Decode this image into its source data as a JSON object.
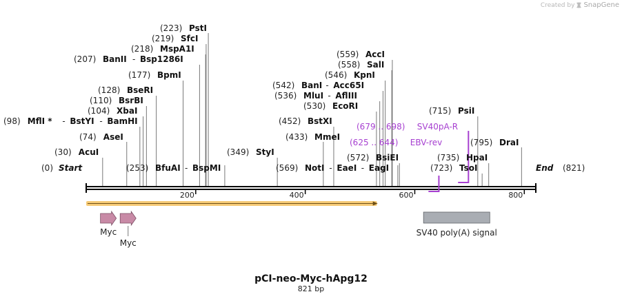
{
  "credit": {
    "prefix": "Created by",
    "brand": "SnapGene"
  },
  "title": "pCI-neo-Myc-hApg12",
  "subtitle": "821 bp",
  "sequence_length": 821,
  "ends": [
    {
      "pos": 0,
      "pos_label": "(0)",
      "label": "Start"
    },
    {
      "pos": 821,
      "pos_label": "(821)",
      "label": "End"
    }
  ],
  "ticks": [
    {
      "pos": 200,
      "label": "200"
    },
    {
      "pos": 400,
      "label": "400"
    },
    {
      "pos": 600,
      "label": "600"
    },
    {
      "pos": 800,
      "label": "800"
    }
  ],
  "enzymes": [
    {
      "pos_label": "(30)",
      "names": [
        "AcuI"
      ],
      "cut": 30
    },
    {
      "pos_label": "(74)",
      "names": [
        "AseI"
      ],
      "cut": 74
    },
    {
      "pos_label": "(98)",
      "names": [
        "MflI *",
        "BstYI",
        "BamHI"
      ],
      "cut": 98
    },
    {
      "pos_label": "(104)",
      "names": [
        "XbaI"
      ],
      "cut": 104
    },
    {
      "pos_label": "(110)",
      "names": [
        "BsrBI"
      ],
      "cut": 110
    },
    {
      "pos_label": "(128)",
      "names": [
        "BseRI"
      ],
      "cut": 128
    },
    {
      "pos_label": "(177)",
      "names": [
        "BpmI"
      ],
      "cut": 177
    },
    {
      "pos_label": "(207)",
      "names": [
        "BanII",
        "Bsp1286I"
      ],
      "cut": 207
    },
    {
      "pos_label": "(218)",
      "names": [
        "MspA1I"
      ],
      "cut": 218
    },
    {
      "pos_label": "(219)",
      "names": [
        "SfcI"
      ],
      "cut": 219
    },
    {
      "pos_label": "(223)",
      "names": [
        "PstI"
      ],
      "cut": 223
    },
    {
      "pos_label": "(253)",
      "names": [
        "BfuAI",
        "BspMI"
      ],
      "cut": 253
    },
    {
      "pos_label": "(349)",
      "names": [
        "StyI"
      ],
      "cut": 349
    },
    {
      "pos_label": "(433)",
      "names": [
        "MmeI"
      ],
      "cut": 433
    },
    {
      "pos_label": "(452)",
      "names": [
        "BstXI"
      ],
      "cut": 452
    },
    {
      "pos_label": "(530)",
      "names": [
        "EcoRI"
      ],
      "cut": 530
    },
    {
      "pos_label": "(536)",
      "names": [
        "MluI",
        "AflIII"
      ],
      "cut": 536
    },
    {
      "pos_label": "(542)",
      "names": [
        "BanI",
        "Acc65I"
      ],
      "cut": 542
    },
    {
      "pos_label": "(546)",
      "names": [
        "KpnI"
      ],
      "cut": 546
    },
    {
      "pos_label": "(558)",
      "names": [
        "SalI"
      ],
      "cut": 558
    },
    {
      "pos_label": "(559)",
      "names": [
        "AccI"
      ],
      "cut": 559
    },
    {
      "pos_label": "(569)",
      "names": [
        "NotI",
        "EaeI",
        "EagI"
      ],
      "cut": 569
    },
    {
      "pos_label": "(572)",
      "names": [
        "BsiEI"
      ],
      "cut": 572
    },
    {
      "pos_label": "(715)",
      "names": [
        "PsiI"
      ],
      "cut": 715
    },
    {
      "pos_label": "(723)",
      "names": [
        "TsoI"
      ],
      "cut": 723
    },
    {
      "pos_label": "(735)",
      "names": [
        "HpaI"
      ],
      "cut": 735
    },
    {
      "pos_label": "(795)",
      "names": [
        "DraI"
      ],
      "cut": 795
    }
  ],
  "primers": [
    {
      "range": "(625 .. 644)",
      "name": "EBV-rev",
      "start": 625,
      "end": 644,
      "direction": "reverse"
    },
    {
      "range": "(679 .. 698)",
      "name": "SV40pA-R",
      "start": 679,
      "end": 698,
      "direction": "reverse"
    }
  ],
  "features": [
    {
      "name": "Myc",
      "start": 26,
      "end": 55,
      "kind": "arrow"
    },
    {
      "name": "Myc",
      "start": 62,
      "end": 91,
      "kind": "arrow"
    },
    {
      "name": "SV40 poly(A) signal",
      "start": 616,
      "end": 737,
      "kind": "box"
    }
  ],
  "orf": {
    "start": 0,
    "end": 531
  },
  "colors": {
    "primer": "#a63fd0",
    "orf_fill": "#f6c25f",
    "myc_fill": "#c88aa6",
    "polya_fill": "#a9adb3",
    "backbone": "#000000"
  }
}
